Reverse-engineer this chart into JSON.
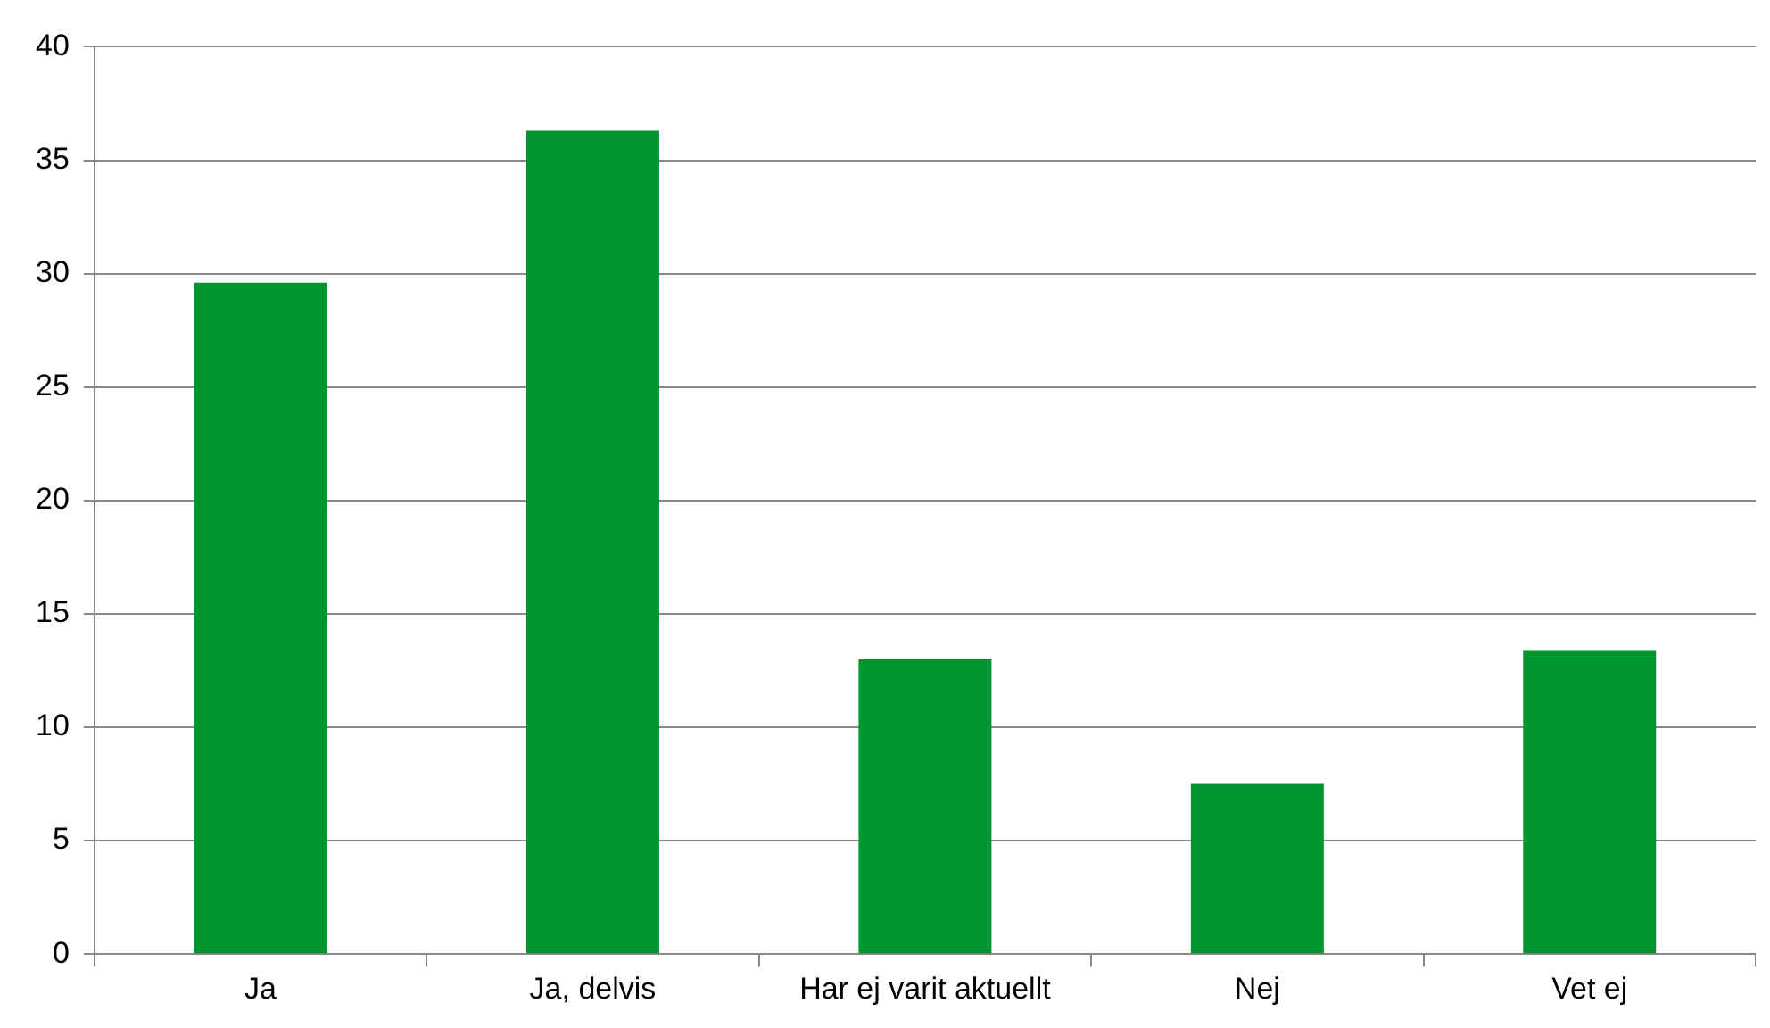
{
  "chart_data": {
    "type": "bar",
    "categories": [
      "Ja",
      "Ja, delvis",
      "Har ej varit aktuellt",
      "Nej",
      "Vet ej"
    ],
    "values": [
      29.6,
      36.3,
      13.0,
      7.5,
      13.4
    ],
    "color": "#00952f",
    "ylim": [
      0,
      40
    ],
    "yticks": [
      0,
      5,
      10,
      15,
      20,
      25,
      30,
      35,
      40
    ],
    "grid": "y",
    "legend": false
  }
}
